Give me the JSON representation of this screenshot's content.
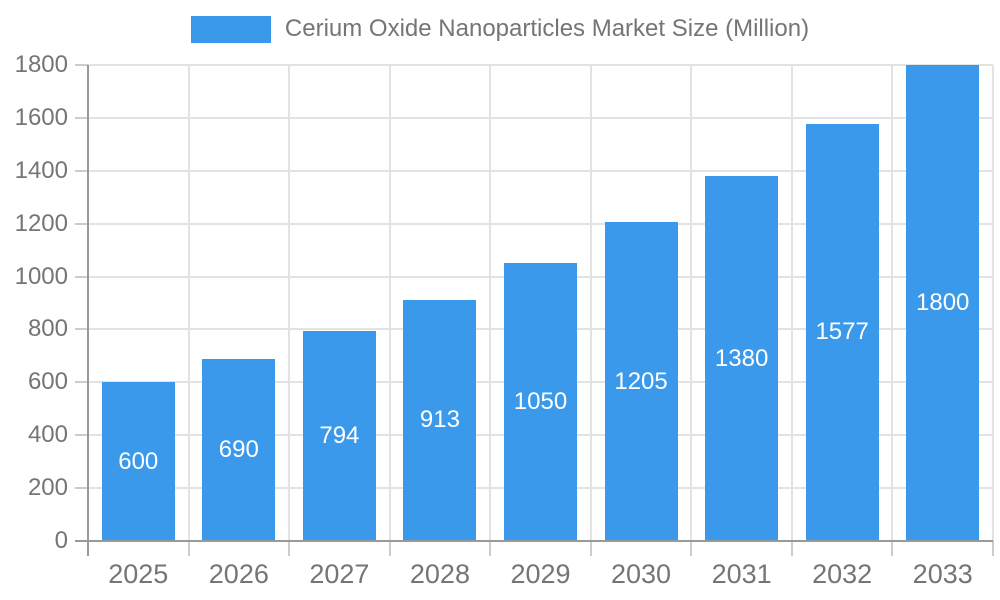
{
  "chart_data": {
    "type": "bar",
    "title": "Cerium Oxide Nanoparticles Market Size (Million)",
    "categories": [
      "2025",
      "2026",
      "2027",
      "2028",
      "2029",
      "2030",
      "2031",
      "2032",
      "2033"
    ],
    "values": [
      600,
      690,
      794,
      913,
      1050,
      1205,
      1380,
      1577,
      1800
    ],
    "xlabel": "",
    "ylabel": "",
    "ylim": [
      0,
      1800
    ],
    "yticks": [
      0,
      200,
      400,
      600,
      800,
      1000,
      1200,
      1400,
      1600,
      1800
    ],
    "grid": true,
    "legend_position": "top",
    "bar_label_position": "inside-center",
    "colors": {
      "bar": "#3B99EC",
      "bar_label": "#FFFFFF",
      "axis_text": "#757575",
      "grid_line": "#E3E3E3",
      "tick_line": "#CCCCCC",
      "axis_line": "#999999",
      "background": "#FFFFFF"
    }
  }
}
